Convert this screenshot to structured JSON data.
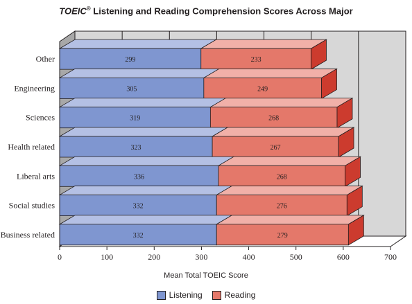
{
  "chart_data": {
    "type": "bar",
    "orientation": "horizontal",
    "stacked": true,
    "three_d": true,
    "title_prefix": "TOEIC",
    "title_sup": "®",
    "title_rest": " Listening and Reading Comprehension Scores Across Major",
    "xlabel": "Mean Total TOEIC Score",
    "ylabel": "",
    "xlim": [
      0,
      700
    ],
    "xticks": [
      0,
      100,
      200,
      300,
      400,
      500,
      600,
      700
    ],
    "grid": true,
    "legend_position": "bottom",
    "categories": [
      "Other",
      "Engineering",
      "Sciences",
      "Health related",
      "Liberal arts",
      "Social studies",
      "Business related"
    ],
    "series": [
      {
        "name": "Listening",
        "values": [
          299,
          305,
          319,
          323,
          336,
          332,
          332
        ],
        "color": "#7f96d0",
        "top_color": "#b4c0e4"
      },
      {
        "name": "Reading",
        "values": [
          233,
          249,
          268,
          267,
          268,
          276,
          279
        ],
        "color": "#e4786a",
        "top_color": "#f1b0a8",
        "side_color": "#cc3b2e"
      }
    ]
  }
}
